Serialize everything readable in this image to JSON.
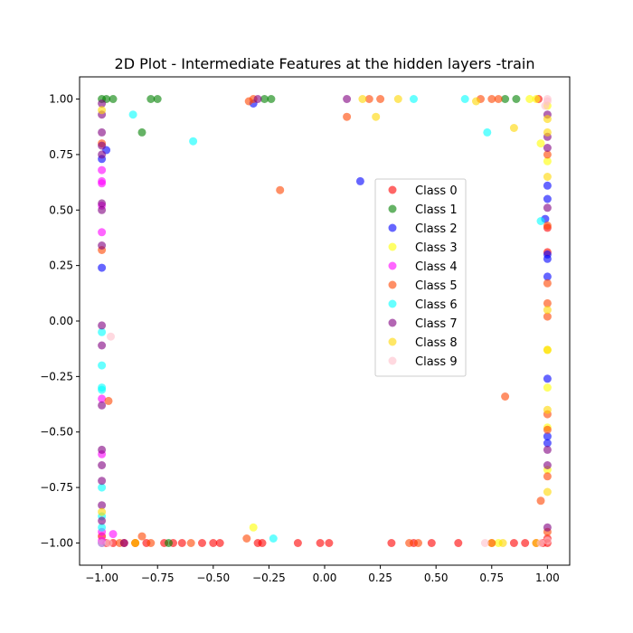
{
  "chart_data": {
    "type": "scatter",
    "title": "2D Plot - Intermediate Features at the hidden layers -train",
    "xlabel": "",
    "ylabel": "",
    "xlim": [
      -1.1,
      1.1
    ],
    "ylim": [
      -1.1,
      1.1
    ],
    "xticks": [
      -1.0,
      -0.75,
      -0.5,
      -0.25,
      0.0,
      0.25,
      0.5,
      0.75,
      1.0
    ],
    "yticks": [
      -1.0,
      -0.75,
      -0.5,
      -0.25,
      0.0,
      0.25,
      0.5,
      0.75,
      1.0
    ],
    "xtick_labels": [
      "−1.00",
      "−0.75",
      "−0.50",
      "−0.25",
      "0.00",
      "0.25",
      "0.50",
      "0.75",
      "1.00"
    ],
    "ytick_labels": [
      "−1.00",
      "−0.75",
      "−0.50",
      "−0.25",
      "0.00",
      "0.25",
      "0.50",
      "0.75",
      "1.00"
    ],
    "grid": false,
    "legend_position": "center-right",
    "marker_alpha": 0.6,
    "series": [
      {
        "name": "Class 0",
        "color": "#ff0000",
        "points": [
          [
            -0.98,
            -1.0
          ],
          [
            -0.95,
            -1.0
          ],
          [
            -0.9,
            -1.0
          ],
          [
            -0.85,
            -1.0
          ],
          [
            -0.8,
            -1.0
          ],
          [
            -0.72,
            -1.0
          ],
          [
            -0.68,
            -1.0
          ],
          [
            -0.64,
            -1.0
          ],
          [
            -0.55,
            -1.0
          ],
          [
            -0.5,
            -1.0
          ],
          [
            -0.47,
            -1.0
          ],
          [
            -0.3,
            -1.0
          ],
          [
            -0.28,
            -1.0
          ],
          [
            -0.12,
            -1.0
          ],
          [
            -0.02,
            -1.0
          ],
          [
            0.02,
            -1.0
          ],
          [
            0.3,
            -1.0
          ],
          [
            0.4,
            -1.0
          ],
          [
            0.48,
            -1.0
          ],
          [
            0.6,
            -1.0
          ],
          [
            0.85,
            -1.0
          ],
          [
            0.9,
            -1.0
          ],
          [
            0.95,
            -1.0
          ],
          [
            0.98,
            -1.0
          ],
          [
            1.0,
            -1.0
          ],
          [
            1.0,
            -0.98
          ],
          [
            1.0,
            0.31
          ],
          [
            1.0,
            0.42
          ],
          [
            0.96,
            1.0
          ],
          [
            -1.0,
            -0.97
          ]
        ]
      },
      {
        "name": "Class 1",
        "color": "#008000",
        "points": [
          [
            -1.0,
            1.0
          ],
          [
            -0.98,
            1.0
          ],
          [
            -0.95,
            1.0
          ],
          [
            -0.78,
            1.0
          ],
          [
            -0.82,
            0.85
          ],
          [
            -0.27,
            1.0
          ],
          [
            -0.24,
            1.0
          ],
          [
            0.81,
            1.0
          ],
          [
            0.86,
            1.0
          ],
          [
            -0.7,
            -1.0
          ],
          [
            -0.75,
            1.0
          ]
        ]
      },
      {
        "name": "Class 2",
        "color": "#0000ff",
        "points": [
          [
            -1.0,
            0.24
          ],
          [
            -1.0,
            0.73
          ],
          [
            -0.98,
            0.77
          ],
          [
            -0.32,
            0.98
          ],
          [
            0.16,
            0.63
          ],
          [
            1.0,
            0.61
          ],
          [
            1.0,
            0.55
          ],
          [
            1.0,
            0.3
          ],
          [
            1.0,
            0.2
          ],
          [
            1.0,
            -0.26
          ],
          [
            1.0,
            -0.52
          ],
          [
            1.0,
            -0.55
          ],
          [
            0.99,
            0.46
          ],
          [
            -1.0,
            -1.0
          ],
          [
            1.0,
            0.28
          ]
        ]
      },
      {
        "name": "Class 3",
        "color": "#ffff00",
        "points": [
          [
            0.97,
            0.8
          ],
          [
            1.0,
            0.72
          ],
          [
            1.0,
            -0.13
          ],
          [
            1.0,
            -0.3
          ],
          [
            1.0,
            -0.48
          ],
          [
            1.0,
            -0.67
          ],
          [
            0.78,
            -1.0
          ],
          [
            0.75,
            -1.0
          ],
          [
            -0.32,
            -0.93
          ],
          [
            0.92,
            1.0
          ],
          [
            0.95,
            1.0
          ],
          [
            1.0,
            0.97
          ]
        ]
      },
      {
        "name": "Class 4",
        "color": "#ff00ff",
        "points": [
          [
            -1.0,
            0.68
          ],
          [
            -1.0,
            0.63
          ],
          [
            -1.0,
            0.62
          ],
          [
            -1.0,
            0.4
          ],
          [
            -1.0,
            -0.35
          ],
          [
            -1.0,
            -0.6
          ],
          [
            -1.0,
            -0.95
          ],
          [
            -1.0,
            -0.99
          ],
          [
            -0.95,
            -0.96
          ],
          [
            -1.0,
            0.52
          ]
        ]
      },
      {
        "name": "Class 5",
        "color": "#ff4500",
        "points": [
          [
            -0.2,
            0.59
          ],
          [
            0.81,
            -0.34
          ],
          [
            -0.97,
            -0.36
          ],
          [
            -0.34,
            0.99
          ],
          [
            -0.32,
            1.0
          ],
          [
            0.1,
            0.92
          ],
          [
            0.2,
            1.0
          ],
          [
            0.25,
            1.0
          ],
          [
            0.7,
            1.0
          ],
          [
            0.75,
            1.0
          ],
          [
            0.78,
            1.0
          ],
          [
            1.0,
            0.75
          ],
          [
            1.0,
            0.43
          ],
          [
            1.0,
            0.17
          ],
          [
            1.0,
            0.02
          ],
          [
            1.0,
            -0.42
          ],
          [
            1.0,
            -0.49
          ],
          [
            1.0,
            -0.7
          ],
          [
            0.97,
            -0.81
          ],
          [
            1.0,
            -0.95
          ],
          [
            0.38,
            -1.0
          ],
          [
            0.42,
            -1.0
          ],
          [
            0.75,
            -1.0
          ],
          [
            -0.35,
            -0.98
          ],
          [
            -0.82,
            -0.97
          ],
          [
            -0.6,
            -1.0
          ],
          [
            -1.0,
            0.32
          ],
          [
            -1.0,
            0.8
          ],
          [
            -0.78,
            -1.0
          ],
          [
            -0.85,
            -1.0
          ],
          [
            -0.92,
            -1.0
          ],
          [
            1.0,
            0.08
          ]
        ]
      },
      {
        "name": "Class 6",
        "color": "#00ffff",
        "points": [
          [
            -0.86,
            0.93
          ],
          [
            -0.59,
            0.81
          ],
          [
            0.4,
            1.0
          ],
          [
            0.63,
            1.0
          ],
          [
            0.73,
            0.85
          ],
          [
            0.97,
            0.45
          ],
          [
            -1.0,
            -0.05
          ],
          [
            -1.0,
            -0.2
          ],
          [
            -1.0,
            -0.3
          ],
          [
            -1.0,
            -0.31
          ],
          [
            -1.0,
            -0.75
          ],
          [
            -1.0,
            -0.93
          ],
          [
            -0.23,
            -0.98
          ],
          [
            -1.0,
            -0.88
          ]
        ]
      },
      {
        "name": "Class 7",
        "color": "#800080",
        "points": [
          [
            -1.0,
            0.98
          ],
          [
            -1.0,
            0.93
          ],
          [
            -1.0,
            0.85
          ],
          [
            -1.0,
            0.75
          ],
          [
            -1.0,
            0.53
          ],
          [
            -1.0,
            0.5
          ],
          [
            -1.0,
            0.34
          ],
          [
            -1.0,
            -0.02
          ],
          [
            -1.0,
            -0.11
          ],
          [
            -1.0,
            -0.38
          ],
          [
            -1.0,
            -0.58
          ],
          [
            -1.0,
            -0.65
          ],
          [
            -1.0,
            -0.72
          ],
          [
            -1.0,
            -0.83
          ],
          [
            -1.0,
            -0.9
          ],
          [
            -0.9,
            -1.0
          ],
          [
            -0.3,
            1.0
          ],
          [
            0.1,
            1.0
          ],
          [
            1.0,
            0.93
          ],
          [
            1.0,
            0.83
          ],
          [
            1.0,
            0.78
          ],
          [
            1.0,
            0.51
          ],
          [
            1.0,
            -0.58
          ],
          [
            1.0,
            -0.65
          ],
          [
            1.0,
            -0.93
          ],
          [
            -1.0,
            0.79
          ]
        ]
      },
      {
        "name": "Class 8",
        "color": "#ffd700",
        "points": [
          [
            -1.0,
            0.95
          ],
          [
            0.17,
            1.0
          ],
          [
            0.23,
            0.92
          ],
          [
            0.33,
            1.0
          ],
          [
            0.85,
            0.87
          ],
          [
            0.68,
            0.99
          ],
          [
            1.0,
            0.91
          ],
          [
            1.0,
            0.65
          ],
          [
            1.0,
            0.05
          ],
          [
            1.0,
            -0.13
          ],
          [
            1.0,
            -0.4
          ],
          [
            1.0,
            -0.77
          ],
          [
            0.95,
            -1.0
          ],
          [
            -1.0,
            -0.86
          ],
          [
            -0.85,
            -1.0
          ],
          [
            0.8,
            -1.0
          ],
          [
            1.0,
            0.85
          ]
        ]
      },
      {
        "name": "Class 9",
        "color": "#ffc0cb",
        "points": [
          [
            -0.96,
            -0.07
          ],
          [
            1.0,
            1.0
          ],
          [
            1.0,
            0.99
          ],
          [
            0.99,
            0.97
          ],
          [
            0.97,
            -1.0
          ],
          [
            0.72,
            -1.0
          ],
          [
            -1.0,
            -1.0
          ],
          [
            -0.97,
            -1.0
          ],
          [
            1.0,
            -0.99
          ]
        ]
      }
    ]
  }
}
